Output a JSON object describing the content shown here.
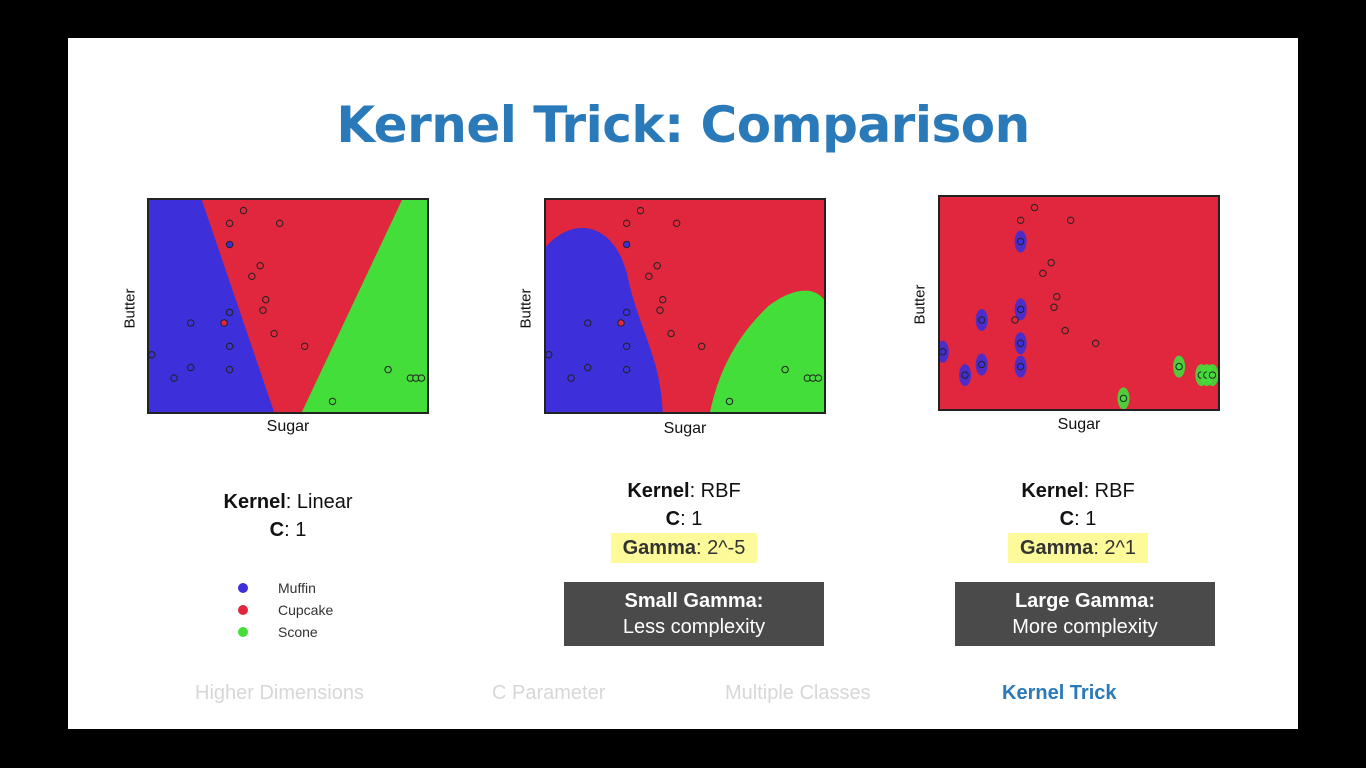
{
  "title": "Kernel Trick: Comparison",
  "colors": {
    "muffin": "#3d2fd9",
    "cupcake": "#e0273d",
    "scone": "#43de3a",
    "title": "#2a79b8",
    "highlight": "#fdfa9a",
    "note_bg": "#4a4a4a"
  },
  "panels": [
    {
      "xlabel": "Sugar",
      "ylabel": "Butter",
      "kernel_label": "Kernel",
      "kernel_value": ": Linear",
      "c_label": "C",
      "c_value": ": 1"
    },
    {
      "xlabel": "Sugar",
      "ylabel": "Butter",
      "kernel_label": "Kernel",
      "kernel_value": ": RBF",
      "c_label": "C",
      "c_value": ": 1",
      "gamma_label": "Gamma",
      "gamma_value": ": 2^-5",
      "note_title": "Small Gamma:",
      "note_text": "Less complexity"
    },
    {
      "xlabel": "Sugar",
      "ylabel": "Butter",
      "kernel_label": "Kernel",
      "kernel_value": ": RBF",
      "c_label": "C",
      "c_value": ": 1",
      "gamma_label": "Gamma",
      "gamma_value": ": 2^1",
      "note_title": "Large Gamma:",
      "note_text": "More complexity"
    }
  ],
  "legend": [
    {
      "label": "Muffin",
      "class": "muffin"
    },
    {
      "label": "Cupcake",
      "class": "cupcake"
    },
    {
      "label": "Scone",
      "class": "scone"
    }
  ],
  "nav": [
    {
      "label": "Higher Dimensions",
      "active": false
    },
    {
      "label": "C Parameter",
      "active": false
    },
    {
      "label": "Multiple Classes",
      "active": false
    },
    {
      "label": "Kernel Trick",
      "active": true
    }
  ],
  "chart_data": {
    "type": "scatter",
    "xlabel": "Sugar",
    "ylabel": "Butter",
    "series": [
      {
        "name": "Muffin",
        "points": [
          [
            0.01,
            0.27
          ],
          [
            0.09,
            0.16
          ],
          [
            0.15,
            0.21
          ],
          [
            0.15,
            0.42
          ],
          [
            0.29,
            0.2
          ],
          [
            0.29,
            0.31
          ],
          [
            0.29,
            0.47
          ],
          [
            0.29,
            0.79
          ]
        ]
      },
      {
        "name": "Cupcake",
        "points": [
          [
            0.27,
            0.42
          ],
          [
            0.29,
            0.89
          ],
          [
            0.34,
            0.95
          ],
          [
            0.37,
            0.64
          ],
          [
            0.4,
            0.69
          ],
          [
            0.41,
            0.48
          ],
          [
            0.42,
            0.53
          ],
          [
            0.45,
            0.37
          ],
          [
            0.47,
            0.89
          ],
          [
            0.56,
            0.31
          ]
        ]
      },
      {
        "name": "Scone",
        "points": [
          [
            0.66,
            0.05
          ],
          [
            0.86,
            0.2
          ],
          [
            0.94,
            0.16
          ],
          [
            0.96,
            0.16
          ],
          [
            0.98,
            0.16
          ]
        ]
      }
    ]
  }
}
